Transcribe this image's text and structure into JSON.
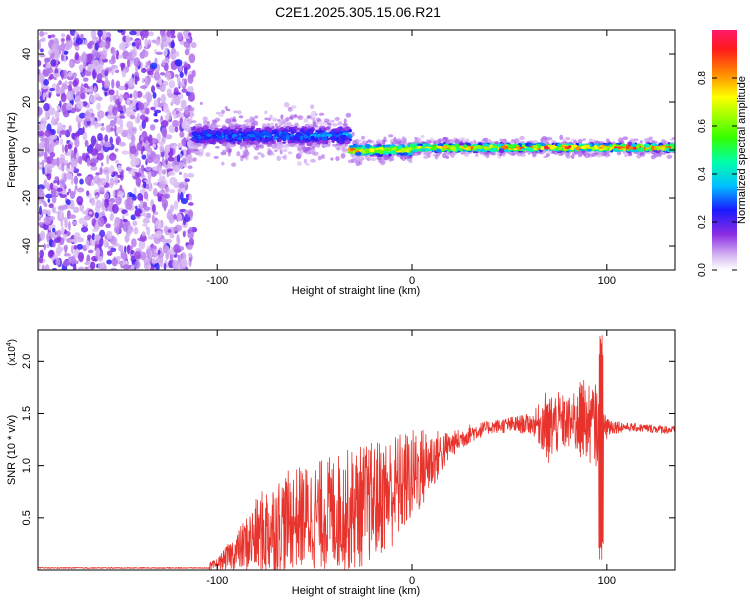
{
  "title": "C2E1.2025.305.15.06.R21",
  "chart_data": [
    {
      "type": "heatmap",
      "name": "spectrogram",
      "xlabel": "Height of straight line (km)",
      "ylabel": "Frequency (Hz)",
      "xlim": [
        -192,
        135
      ],
      "ylim": [
        -50,
        50
      ],
      "x_ticks": [
        -100,
        0,
        100
      ],
      "x_tick_labels": [
        "-100",
        "0",
        "100"
      ],
      "y_ticks": [
        -40,
        -20,
        0,
        20,
        40
      ],
      "y_tick_labels": [
        "-40",
        "-20",
        "0",
        "20",
        "40"
      ],
      "colorbar": {
        "label": "Normalized spectral amplitude",
        "range": [
          0,
          1
        ],
        "ticks": [
          0.0,
          0.2,
          0.4,
          0.6,
          0.8
        ],
        "tick_labels": [
          "0.0",
          "0.2",
          "0.4",
          "0.6",
          "0.8"
        ]
      },
      "regions": [
        {
          "x": [
            -192,
            -112
          ],
          "description": "broadband scattered noise, amplitude ~0.0-0.15"
        },
        {
          "x": [
            -112,
            -32
          ],
          "frequency_center": 6,
          "frequency_halfwidth": 6,
          "amplitude": 0.35
        },
        {
          "x": [
            -32,
            0
          ],
          "frequency_center": 0,
          "frequency_halfwidth": 3,
          "amplitude": 0.85
        },
        {
          "x": [
            0,
            135
          ],
          "frequency_center": 1,
          "frequency_halfwidth": 2,
          "amplitude": 0.95
        }
      ]
    },
    {
      "type": "line",
      "name": "snr",
      "xlabel": "Height of straight line (km)",
      "ylabel": "SNR (10 * v/v)",
      "y_scale_label": "(x10",
      "y_scale_exp": "4",
      "y_scale_close": ")",
      "xlim": [
        -192,
        135
      ],
      "ylim": [
        0,
        2.3
      ],
      "x_ticks": [
        -100,
        0,
        100
      ],
      "x_tick_labels": [
        "-100",
        "0",
        "100"
      ],
      "y_ticks": [
        0.5,
        1.0,
        1.5,
        2.0
      ],
      "y_tick_labels": [
        "0.5",
        "1.0",
        "1.5",
        "2.0"
      ],
      "color": "#e8332c",
      "envelope": [
        {
          "x": -192,
          "y": 0.02
        },
        {
          "x": -104,
          "y": 0.02
        },
        {
          "x": -100,
          "y": 0.06
        },
        {
          "x": -90,
          "y": 0.18
        },
        {
          "x": -80,
          "y": 0.32
        },
        {
          "x": -70,
          "y": 0.42
        },
        {
          "x": -60,
          "y": 0.5
        },
        {
          "x": -50,
          "y": 0.52
        },
        {
          "x": -40,
          "y": 0.55
        },
        {
          "x": -30,
          "y": 0.58
        },
        {
          "x": -20,
          "y": 0.66
        },
        {
          "x": -10,
          "y": 0.76
        },
        {
          "x": 0,
          "y": 0.9
        },
        {
          "x": 10,
          "y": 1.05
        },
        {
          "x": 20,
          "y": 1.2
        },
        {
          "x": 30,
          "y": 1.31
        },
        {
          "x": 40,
          "y": 1.37
        },
        {
          "x": 50,
          "y": 1.39
        },
        {
          "x": 60,
          "y": 1.4
        },
        {
          "x": 70,
          "y": 1.4
        },
        {
          "x": 80,
          "y": 1.41
        },
        {
          "x": 90,
          "y": 1.4
        },
        {
          "x": 100,
          "y": 1.38
        },
        {
          "x": 110,
          "y": 1.37
        },
        {
          "x": 120,
          "y": 1.36
        },
        {
          "x": 135,
          "y": 1.34
        }
      ],
      "spikes": [
        {
          "x": 97,
          "y_min": 0.1,
          "y_max": 2.25
        },
        {
          "x": 70,
          "y_min": 1.0,
          "y_max": 1.7
        },
        {
          "x": 87,
          "y_min": 1.05,
          "y_max": 1.83
        }
      ],
      "noise": [
        {
          "x": -100,
          "amplitude": 0.05
        },
        {
          "x": -90,
          "amplitude": 0.18
        },
        {
          "x": -75,
          "amplitude": 0.45
        },
        {
          "x": -55,
          "amplitude": 0.5
        },
        {
          "x": -30,
          "amplitude": 0.6
        },
        {
          "x": -10,
          "amplitude": 0.55
        },
        {
          "x": 5,
          "amplitude": 0.4
        },
        {
          "x": 20,
          "amplitude": 0.12
        },
        {
          "x": 40,
          "amplitude": 0.06
        },
        {
          "x": 62,
          "amplitude": 0.1
        },
        {
          "x": 70,
          "amplitude": 0.35
        },
        {
          "x": 80,
          "amplitude": 0.25
        },
        {
          "x": 88,
          "amplitude": 0.35
        },
        {
          "x": 95,
          "amplitude": 0.4
        },
        {
          "x": 102,
          "amplitude": 0.08
        },
        {
          "x": 110,
          "amplitude": 0.04
        },
        {
          "x": 135,
          "amplitude": 0.04
        }
      ]
    }
  ]
}
